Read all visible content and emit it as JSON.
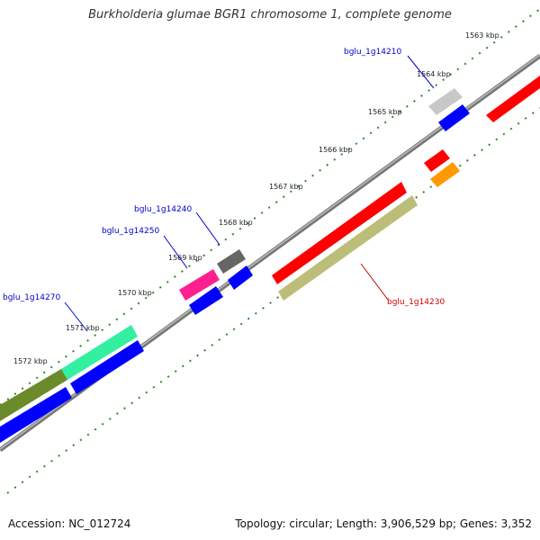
{
  "title": "Burkholderia glumae BGR1 chromosome 1, complete genome",
  "footer": {
    "accession": "Accession: NC_012724",
    "summary": "Topology: circular; Length: 3,906,529 bp; Genes: 3,352"
  },
  "ruler": {
    "tick_labels": [
      "1563 kbp",
      "1564 kbp",
      "1565 kbp",
      "1566 kbp",
      "1567 kbp",
      "1568 kbp",
      "1569 kbp",
      "1570 kbp",
      "1571 kbp",
      "1572 kbp"
    ]
  },
  "gene_labels": [
    {
      "text": "bglu_1g14210",
      "color": "#0000cc"
    },
    {
      "text": "bglu_1g14240",
      "color": "#0000cc"
    },
    {
      "text": "bglu_1g14250",
      "color": "#0000cc"
    },
    {
      "text": "bglu_1g14270",
      "color": "#0000cc"
    },
    {
      "text": "bglu_1g14230",
      "color": "#cc0000"
    }
  ],
  "colors": {
    "backbone": "#888888",
    "ruler_ticks": "#2a8a2a",
    "feature_red": "#ff0000",
    "feature_blue": "#0000ff",
    "feature_olive": "#bdbd7a",
    "feature_dark_olive": "#6b8a2a",
    "feature_mint": "#33f0a0",
    "feature_pink": "#ff2090",
    "feature_gray": "#c0c0c0",
    "feature_dark_gray": "#666666",
    "feature_orange": "#ff9900"
  }
}
